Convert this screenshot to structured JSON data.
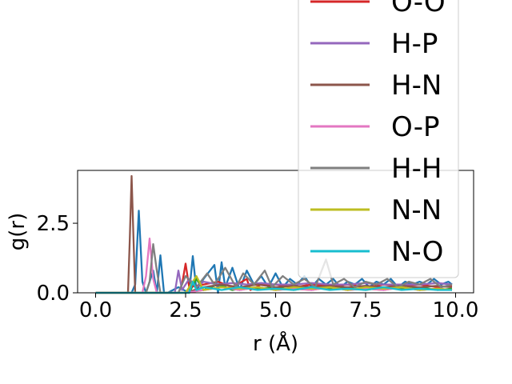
{
  "chart_data": {
    "type": "line",
    "title": "",
    "xlabel": "r (Å)",
    "ylabel": "g(r)",
    "xlim": [
      -0.5,
      10.5
    ],
    "ylim": [
      0,
      4.4
    ],
    "xticks": [
      0.0,
      2.5,
      5.0,
      7.5,
      10.0
    ],
    "xtick_labels": [
      "0.0",
      "2.5",
      "5.0",
      "7.5",
      "10.0"
    ],
    "yticks": [
      0.0,
      2.5
    ],
    "ytick_labels": [
      "0.0",
      "2.5"
    ],
    "grid": false,
    "legend_placement": "upper-right (extends above axes, partially clipped)",
    "series": [
      {
        "name": "",
        "color": "#1f77b4",
        "x": [
          0.0,
          0.9,
          1.0,
          1.1,
          1.2,
          1.3,
          1.4,
          1.6,
          1.7,
          1.8,
          1.9,
          2.0,
          2.3,
          2.6,
          2.7,
          2.8,
          3.0,
          3.3,
          3.4,
          3.5,
          3.6,
          3.8,
          4.0,
          4.2,
          4.4,
          4.6,
          4.8,
          5.0,
          5.2,
          5.4,
          5.6,
          5.8,
          6.0,
          6.2,
          6.4,
          6.6,
          6.8,
          7.0,
          7.2,
          7.4,
          7.6,
          7.8,
          8.0,
          8.2,
          8.4,
          8.6,
          8.8,
          9.0,
          9.2,
          9.4,
          9.6,
          9.8,
          9.9
        ],
        "y": [
          0.0,
          0.0,
          0.0,
          0.3,
          2.95,
          0.4,
          0.0,
          0.8,
          0.0,
          1.35,
          0.0,
          0.0,
          0.2,
          0.0,
          1.32,
          0.1,
          0.5,
          1.0,
          0.0,
          1.1,
          0.2,
          0.9,
          0.1,
          0.8,
          0.3,
          0.6,
          0.2,
          0.7,
          0.2,
          0.5,
          0.3,
          0.6,
          0.2,
          0.5,
          0.3,
          0.5,
          0.2,
          0.4,
          0.3,
          0.5,
          0.2,
          0.4,
          0.3,
          0.5,
          0.2,
          0.4,
          0.3,
          0.4,
          0.3,
          0.5,
          0.3,
          0.4,
          0.3
        ]
      },
      {
        "name": "",
        "color": "#ff7f0e",
        "x": [
          0.0,
          2.5,
          3.0,
          3.5,
          4.0,
          4.5,
          5.0,
          5.5,
          6.0,
          6.5,
          7.0,
          7.5,
          8.0,
          8.5,
          9.0,
          9.5,
          9.9
        ],
        "y": [
          0.0,
          0.0,
          0.1,
          0.2,
          0.1,
          0.2,
          0.1,
          0.15,
          0.1,
          0.2,
          0.1,
          0.15,
          0.1,
          0.2,
          0.1,
          0.15,
          0.1
        ]
      },
      {
        "name": "",
        "color": "#2ca02c",
        "x": [
          0.0,
          2.6,
          2.8,
          3.0,
          3.4,
          3.8,
          4.2,
          4.6,
          5.0,
          5.5,
          6.0,
          6.5,
          7.0,
          7.5,
          8.0,
          8.5,
          9.0,
          9.5,
          9.9
        ],
        "y": [
          0.0,
          0.0,
          0.5,
          0.1,
          0.3,
          0.1,
          0.2,
          0.15,
          0.2,
          0.1,
          0.2,
          0.15,
          0.2,
          0.1,
          0.2,
          0.15,
          0.2,
          0.1,
          0.15
        ]
      },
      {
        "name": "O-O",
        "color": "#d62728",
        "x": [
          0.0,
          2.3,
          2.4,
          2.5,
          2.6,
          3.0,
          3.4,
          3.8,
          4.2,
          4.3,
          4.6,
          5.0,
          5.5,
          6.0,
          6.5,
          7.0,
          7.5,
          8.0,
          8.5,
          9.0,
          9.5,
          9.9
        ],
        "y": [
          0.0,
          0.0,
          0.3,
          1.05,
          0.2,
          0.3,
          0.4,
          0.2,
          0.5,
          0.1,
          0.3,
          0.3,
          0.2,
          0.3,
          0.25,
          0.3,
          0.2,
          0.3,
          0.25,
          0.3,
          0.2,
          0.25
        ]
      },
      {
        "name": "H-P",
        "color": "#9467bd",
        "x": [
          0.0,
          2.2,
          2.3,
          2.4,
          2.6,
          2.8,
          3.0,
          3.4,
          3.8,
          4.2,
          4.6,
          5.0,
          5.5,
          6.0,
          6.5,
          7.0,
          7.5,
          8.0,
          8.5,
          9.0,
          9.5,
          9.9
        ],
        "y": [
          0.0,
          0.0,
          0.8,
          0.1,
          0.5,
          0.2,
          0.4,
          0.3,
          0.35,
          0.3,
          0.35,
          0.3,
          0.3,
          0.35,
          0.3,
          0.3,
          0.35,
          0.3,
          0.3,
          0.3,
          0.35,
          0.3
        ]
      },
      {
        "name": "H-N",
        "color": "#8c564b",
        "x": [
          0.0,
          0.9,
          0.95,
          1.0,
          1.05,
          1.1,
          1.2,
          2.5,
          3.0,
          3.5,
          4.0,
          4.5,
          5.0,
          5.5,
          6.0,
          6.5,
          7.0,
          7.5,
          8.0,
          8.5,
          9.0,
          9.5,
          9.9
        ],
        "y": [
          0.0,
          0.0,
          2.0,
          4.2,
          2.0,
          0.0,
          0.0,
          0.0,
          0.2,
          0.3,
          0.2,
          0.3,
          0.2,
          0.25,
          0.2,
          0.25,
          0.2,
          0.25,
          0.2,
          0.25,
          0.2,
          0.25,
          0.2
        ]
      },
      {
        "name": "O-P",
        "color": "#e377c2",
        "x": [
          0.0,
          1.3,
          1.4,
          1.5,
          1.6,
          1.7,
          2.5,
          3.0,
          3.5,
          4.0,
          4.5,
          5.0,
          5.5,
          6.0,
          6.5,
          7.0,
          7.5,
          8.0,
          8.5,
          9.0,
          9.5,
          9.9
        ],
        "y": [
          0.0,
          0.0,
          0.6,
          1.95,
          0.5,
          0.0,
          0.0,
          0.1,
          0.2,
          0.1,
          0.2,
          0.1,
          0.15,
          0.1,
          0.2,
          0.1,
          0.15,
          0.1,
          0.2,
          0.1,
          0.15,
          0.1
        ]
      },
      {
        "name": "H-H",
        "color": "#7f7f7f",
        "x": [
          0.0,
          1.4,
          1.5,
          1.6,
          1.7,
          1.8,
          2.3,
          2.5,
          2.8,
          3.1,
          3.3,
          3.6,
          3.9,
          4.1,
          4.4,
          4.7,
          4.9,
          5.2,
          5.5,
          5.8,
          6.1,
          6.4,
          6.6,
          6.9,
          7.2,
          7.5,
          7.8,
          8.1,
          8.4,
          8.7,
          9.0,
          9.3,
          9.6,
          9.9
        ],
        "y": [
          0.0,
          0.0,
          0.4,
          1.75,
          0.8,
          0.0,
          0.0,
          0.6,
          0.2,
          0.7,
          0.3,
          0.9,
          0.2,
          0.7,
          0.3,
          0.8,
          0.2,
          0.6,
          0.3,
          0.5,
          0.2,
          1.2,
          0.3,
          0.5,
          0.2,
          0.4,
          0.3,
          0.5,
          0.2,
          0.4,
          0.3,
          0.5,
          0.2,
          0.3
        ]
      },
      {
        "name": "N-N",
        "color": "#bcbd22",
        "x": [
          0.0,
          2.5,
          2.8,
          3.0,
          3.5,
          4.0,
          4.5,
          5.0,
          5.5,
          6.0,
          6.5,
          7.0,
          7.5,
          8.0,
          8.5,
          9.0,
          9.5,
          9.9
        ],
        "y": [
          0.0,
          0.0,
          0.6,
          0.1,
          0.2,
          0.15,
          0.2,
          0.1,
          0.2,
          0.15,
          0.2,
          0.1,
          0.2,
          0.15,
          0.2,
          0.1,
          0.15,
          0.1
        ]
      },
      {
        "name": "N-O",
        "color": "#17becf",
        "x": [
          0.0,
          2.6,
          2.7,
          2.8,
          3.0,
          3.5,
          4.0,
          4.5,
          5.0,
          5.5,
          6.0,
          6.5,
          7.0,
          7.5,
          8.0,
          8.5,
          9.0,
          9.5,
          9.9
        ],
        "y": [
          0.0,
          0.0,
          0.4,
          0.1,
          0.2,
          0.1,
          0.2,
          0.1,
          0.15,
          0.1,
          0.2,
          0.1,
          0.15,
          0.1,
          0.2,
          0.1,
          0.15,
          0.1,
          0.1
        ]
      }
    ],
    "legend": [
      {
        "label": "O-O",
        "color": "#d62728"
      },
      {
        "label": "H-P",
        "color": "#9467bd"
      },
      {
        "label": "H-N",
        "color": "#8c564b"
      },
      {
        "label": "O-P",
        "color": "#e377c2"
      },
      {
        "label": "H-H",
        "color": "#7f7f7f"
      },
      {
        "label": "N-N",
        "color": "#bcbd22"
      },
      {
        "label": "N-O",
        "color": "#17becf"
      }
    ]
  }
}
